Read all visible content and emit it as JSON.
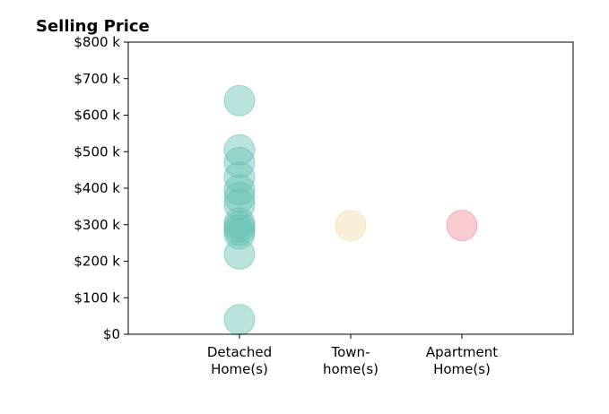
{
  "chart_data": {
    "type": "scatter",
    "title": "Selling Price",
    "xlabel": "",
    "ylabel": "",
    "categories": [
      [
        "Detached",
        "Home(s)"
      ],
      [
        "Town-",
        "home(s)"
      ],
      [
        "Apartment",
        "Home(s)"
      ]
    ],
    "ylim": [
      0,
      800
    ],
    "yticks": [
      0,
      100,
      200,
      300,
      400,
      500,
      600,
      700,
      800
    ],
    "ytick_labels": [
      "$0",
      "$100 k",
      "$200 k",
      "$300 k",
      "$400 k",
      "$500 k",
      "$600 k",
      "$700 k",
      "$800 k"
    ],
    "grid": false,
    "legend": "none",
    "series": [
      {
        "category_index": 0,
        "color": "#66c2b4",
        "values": [
          640,
          505,
          470,
          430,
          395,
          375,
          355,
          305,
          295,
          285,
          275,
          220,
          40
        ]
      },
      {
        "category_index": 1,
        "color": "#f2dba8",
        "values": [
          298
        ]
      },
      {
        "category_index": 2,
        "color": "#f08c96",
        "values": [
          298
        ]
      }
    ]
  }
}
